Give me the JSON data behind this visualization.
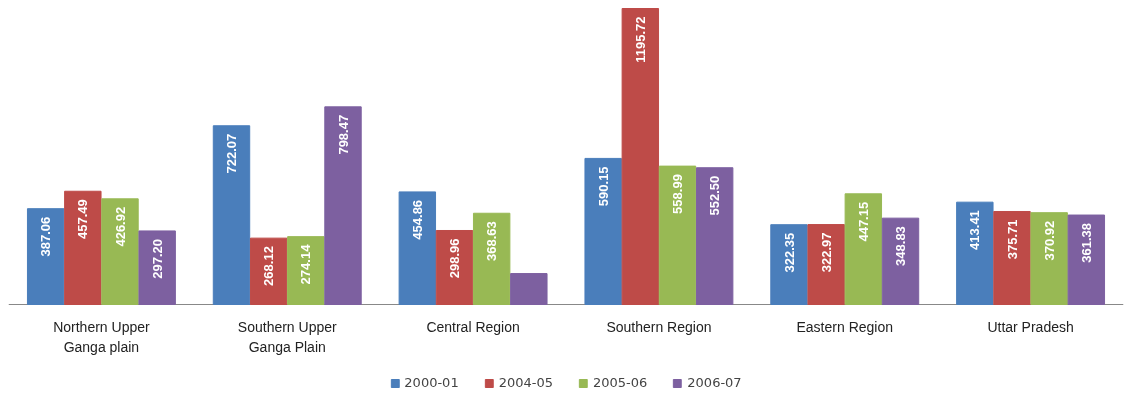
{
  "chart_data": {
    "type": "bar",
    "categories": [
      "Northern Upper Ganga plain",
      "Southern Upper Ganga Plain",
      "Central Region",
      "Southern Region",
      "Eastern Region",
      "Uttar Pradesh"
    ],
    "series": [
      {
        "name": "2000-01",
        "color": "#4a7ebb",
        "values": [
          387.06,
          722.07,
          454.86,
          590.15,
          322.35,
          413.41
        ]
      },
      {
        "name": "2004-05",
        "color": "#be4b48",
        "values": [
          457.49,
          268.12,
          298.96,
          1195.72,
          322.97,
          375.71
        ]
      },
      {
        "name": "2005-06",
        "color": "#98b954",
        "values": [
          426.92,
          274.14,
          368.63,
          558.99,
          447.15,
          370.92
        ]
      },
      {
        "name": "2006-07",
        "color": "#7d60a0",
        "values": [
          297.2,
          798.47,
          125,
          552.5,
          348.83,
          361.38
        ],
        "value_labels": [
          "297.20",
          "798.47",
          null,
          "552.50",
          "348.83",
          "361.38"
        ]
      }
    ],
    "data_labels": true,
    "legend": "bottom",
    "grid": false
  }
}
